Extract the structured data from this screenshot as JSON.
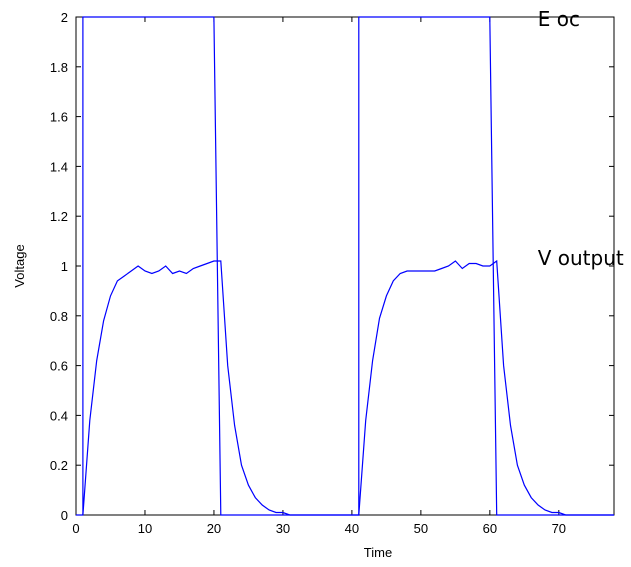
{
  "chart_data": {
    "type": "line",
    "title": "",
    "xlabel": "Time",
    "ylabel": "Voltage",
    "xlim": [
      0,
      78
    ],
    "ylim": [
      0,
      2
    ],
    "xticks": [
      "0",
      "10",
      "20",
      "30",
      "40",
      "50",
      "60",
      "70"
    ],
    "yticks": [
      "0",
      "0.2",
      "0.4",
      "0.6",
      "0.8",
      "1",
      "1.2",
      "1.4",
      "1.6",
      "1.8",
      "2"
    ],
    "grid": false,
    "line_color": "#0000ff",
    "annotations": [
      {
        "text": "E oc",
        "x": 61,
        "y": 2.0
      },
      {
        "text": "V output",
        "x": 61,
        "y": 1.04
      }
    ],
    "series": [
      {
        "x": [
          0,
          1,
          1,
          20,
          21,
          21,
          40,
          41,
          41,
          60,
          61,
          61,
          78
        ],
        "y": [
          0,
          0,
          2,
          2,
          0,
          0,
          0,
          0,
          2,
          2,
          0,
          0,
          0
        ]
      },
      {
        "x": [
          1,
          2,
          3,
          4,
          5,
          6,
          7,
          8,
          9,
          10,
          11,
          12,
          13,
          14,
          15,
          16,
          17,
          18,
          19,
          20,
          21,
          22,
          23,
          24,
          25,
          26,
          27,
          28,
          29,
          30,
          31,
          32,
          33,
          34,
          35,
          36,
          37,
          38,
          39,
          40,
          41,
          42,
          43,
          44,
          45,
          46,
          47,
          48,
          49,
          50,
          51,
          52,
          53,
          54,
          55,
          56,
          57,
          58,
          59,
          60,
          61,
          62,
          63,
          64,
          65,
          66,
          67,
          68,
          69,
          70,
          71,
          72,
          73,
          74,
          75,
          76,
          77,
          78
        ],
        "y": [
          0.0,
          0.38,
          0.62,
          0.78,
          0.88,
          0.94,
          0.96,
          0.98,
          1.0,
          0.98,
          0.97,
          0.98,
          1.0,
          0.97,
          0.98,
          0.97,
          0.99,
          1.0,
          1.01,
          1.02,
          1.02,
          0.6,
          0.36,
          0.2,
          0.12,
          0.07,
          0.04,
          0.02,
          0.01,
          0.01,
          0.0,
          0.0,
          0.0,
          0.0,
          0.0,
          0.0,
          0.0,
          0.0,
          0.0,
          0.0,
          0.0,
          0.38,
          0.62,
          0.79,
          0.88,
          0.94,
          0.97,
          0.98,
          0.98,
          0.98,
          0.98,
          0.98,
          0.99,
          1.0,
          1.02,
          0.99,
          1.01,
          1.01,
          1.0,
          1.0,
          1.02,
          0.6,
          0.36,
          0.2,
          0.12,
          0.07,
          0.04,
          0.02,
          0.01,
          0.01,
          0.0,
          0.0,
          0.0,
          0.0,
          0.0,
          0.0,
          0.0,
          0.0
        ]
      }
    ]
  }
}
